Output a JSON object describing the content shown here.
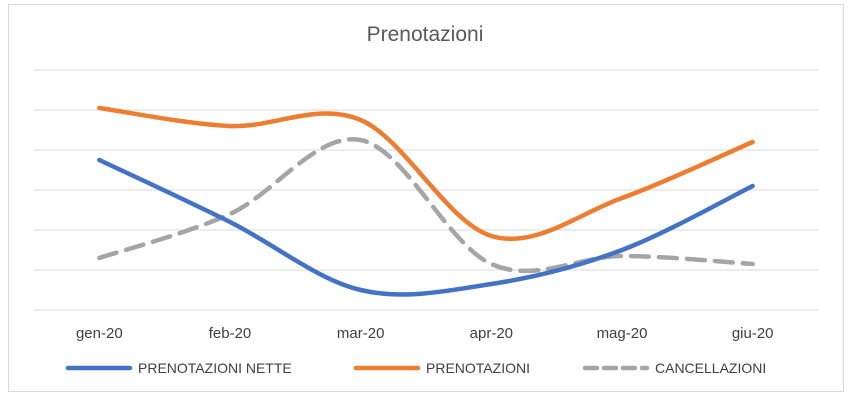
{
  "chart_data": {
    "type": "line",
    "title": "Prenotazioni",
    "categories": [
      "gen-20",
      "feb-20",
      "mar-20",
      "apr-20",
      "mag-20",
      "giu-20"
    ],
    "series": [
      {
        "name": "PRENOTAZIONI NETTE",
        "color": "#4472C4",
        "dash": "solid",
        "values": [
          3.75,
          2.2,
          0.5,
          0.65,
          1.5,
          3.1
        ]
      },
      {
        "name": "PRENOTAZIONI",
        "color": "#ED7D31",
        "dash": "solid",
        "values": [
          5.05,
          4.6,
          4.75,
          1.85,
          2.8,
          4.2
        ]
      },
      {
        "name": "CANCELLAZIONI",
        "color": "#A5A5A5",
        "dash": "dashed",
        "values": [
          1.3,
          2.4,
          4.25,
          1.15,
          1.35,
          1.15
        ]
      }
    ],
    "ylim": [
      0,
      6
    ],
    "y_axis_labels_visible": false,
    "grid": true,
    "legend_position": "bottom"
  }
}
